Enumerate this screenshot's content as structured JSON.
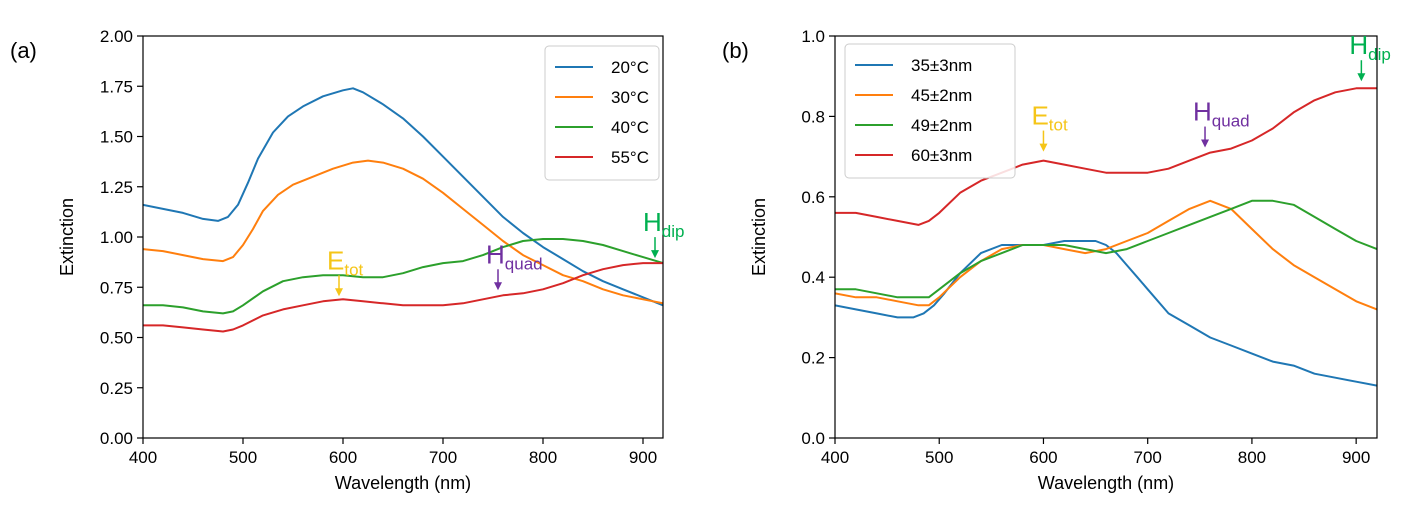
{
  "chart_data": [
    {
      "type": "line",
      "panel_label": "(a)",
      "xlabel": "Wavelength (nm)",
      "ylabel": "Extinction",
      "xlim": [
        400,
        920
      ],
      "ylim": [
        0.0,
        2.0
      ],
      "xticks": [
        400,
        500,
        600,
        700,
        800,
        900
      ],
      "xtick_labels": [
        "400",
        "500",
        "600",
        "700",
        "800",
        "900"
      ],
      "yticks": [
        0.0,
        0.25,
        0.5,
        0.75,
        1.0,
        1.25,
        1.5,
        1.75,
        2.0
      ],
      "ytick_labels": [
        "0.00",
        "0.25",
        "0.50",
        "0.75",
        "1.00",
        "1.25",
        "1.50",
        "1.75",
        "2.00"
      ],
      "legend_position": "top-right",
      "series": [
        {
          "name": "20°C",
          "color": "#1f77b4",
          "x": [
            400,
            420,
            440,
            460,
            475,
            485,
            495,
            505,
            515,
            530,
            545,
            560,
            580,
            600,
            610,
            620,
            640,
            660,
            680,
            700,
            720,
            740,
            760,
            780,
            800,
            820,
            840,
            860,
            880,
            900,
            920
          ],
          "y": [
            1.16,
            1.14,
            1.12,
            1.09,
            1.08,
            1.1,
            1.16,
            1.27,
            1.39,
            1.52,
            1.6,
            1.65,
            1.7,
            1.73,
            1.74,
            1.72,
            1.66,
            1.59,
            1.5,
            1.4,
            1.3,
            1.2,
            1.1,
            1.02,
            0.95,
            0.89,
            0.83,
            0.78,
            0.74,
            0.7,
            0.66
          ]
        },
        {
          "name": "30°C",
          "color": "#ff7f0e",
          "x": [
            400,
            420,
            440,
            460,
            480,
            490,
            500,
            510,
            520,
            535,
            550,
            570,
            590,
            610,
            625,
            640,
            660,
            680,
            700,
            720,
            740,
            760,
            780,
            800,
            820,
            840,
            860,
            880,
            900,
            920
          ],
          "y": [
            0.94,
            0.93,
            0.91,
            0.89,
            0.88,
            0.9,
            0.96,
            1.04,
            1.13,
            1.21,
            1.26,
            1.3,
            1.34,
            1.37,
            1.38,
            1.37,
            1.34,
            1.29,
            1.22,
            1.14,
            1.06,
            0.98,
            0.91,
            0.86,
            0.81,
            0.78,
            0.74,
            0.71,
            0.69,
            0.67
          ]
        },
        {
          "name": "40°C",
          "color": "#2ca02c",
          "x": [
            400,
            420,
            440,
            460,
            480,
            490,
            500,
            520,
            540,
            560,
            580,
            600,
            620,
            640,
            660,
            680,
            700,
            720,
            740,
            760,
            780,
            800,
            810,
            820,
            840,
            860,
            880,
            900,
            920
          ],
          "y": [
            0.66,
            0.66,
            0.65,
            0.63,
            0.62,
            0.63,
            0.66,
            0.73,
            0.78,
            0.8,
            0.81,
            0.81,
            0.8,
            0.8,
            0.82,
            0.85,
            0.87,
            0.88,
            0.91,
            0.95,
            0.98,
            0.99,
            0.99,
            0.99,
            0.98,
            0.96,
            0.93,
            0.9,
            0.87
          ]
        },
        {
          "name": "55°C",
          "color": "#d62728",
          "x": [
            400,
            420,
            440,
            460,
            480,
            490,
            500,
            520,
            540,
            560,
            580,
            600,
            620,
            640,
            660,
            680,
            700,
            720,
            740,
            760,
            780,
            800,
            820,
            840,
            860,
            880,
            900,
            910,
            920
          ],
          "y": [
            0.56,
            0.56,
            0.55,
            0.54,
            0.53,
            0.54,
            0.56,
            0.61,
            0.64,
            0.66,
            0.68,
            0.69,
            0.68,
            0.67,
            0.66,
            0.66,
            0.66,
            0.67,
            0.69,
            0.71,
            0.72,
            0.74,
            0.77,
            0.81,
            0.84,
            0.86,
            0.87,
            0.87,
            0.87
          ]
        }
      ],
      "annotations": [
        {
          "main": "E",
          "sub": "tot",
          "color": "#f5c518",
          "x": 596,
          "y": 0.7
        },
        {
          "main": "H",
          "sub": "quad",
          "color": "#7030a0",
          "x": 755,
          "y": 0.73
        },
        {
          "main": "H",
          "sub": "dip",
          "color": "#00b050",
          "x": 912,
          "y": 0.89
        }
      ]
    },
    {
      "type": "line",
      "panel_label": "(b)",
      "xlabel": "Wavelength (nm)",
      "ylabel": "Extinction",
      "xlim": [
        400,
        920
      ],
      "ylim": [
        0.0,
        1.0
      ],
      "xticks": [
        400,
        500,
        600,
        700,
        800,
        900
      ],
      "xtick_labels": [
        "400",
        "500",
        "600",
        "700",
        "800",
        "900"
      ],
      "yticks": [
        0.0,
        0.2,
        0.4,
        0.6,
        0.8,
        1.0
      ],
      "ytick_labels": [
        "0.0",
        "0.2",
        "0.4",
        "0.6",
        "0.8",
        "1.0"
      ],
      "legend_position": "top-left",
      "series": [
        {
          "name": "35±3nm",
          "color": "#1f77b4",
          "x": [
            400,
            420,
            440,
            460,
            475,
            485,
            495,
            505,
            520,
            540,
            560,
            580,
            600,
            620,
            640,
            650,
            660,
            670,
            680,
            690,
            700,
            720,
            740,
            760,
            780,
            800,
            820,
            840,
            860,
            880,
            900,
            920
          ],
          "y": [
            0.33,
            0.32,
            0.31,
            0.3,
            0.3,
            0.31,
            0.33,
            0.36,
            0.41,
            0.46,
            0.48,
            0.48,
            0.48,
            0.49,
            0.49,
            0.49,
            0.48,
            0.46,
            0.43,
            0.4,
            0.37,
            0.31,
            0.28,
            0.25,
            0.23,
            0.21,
            0.19,
            0.18,
            0.16,
            0.15,
            0.14,
            0.13
          ]
        },
        {
          "name": "45±2nm",
          "color": "#ff7f0e",
          "x": [
            400,
            420,
            440,
            460,
            480,
            490,
            500,
            520,
            540,
            560,
            580,
            600,
            620,
            640,
            660,
            680,
            700,
            720,
            740,
            760,
            780,
            800,
            820,
            840,
            860,
            880,
            900,
            920
          ],
          "y": [
            0.36,
            0.35,
            0.35,
            0.34,
            0.33,
            0.33,
            0.35,
            0.4,
            0.44,
            0.47,
            0.48,
            0.48,
            0.47,
            0.46,
            0.47,
            0.49,
            0.51,
            0.54,
            0.57,
            0.59,
            0.57,
            0.52,
            0.47,
            0.43,
            0.4,
            0.37,
            0.34,
            0.32
          ]
        },
        {
          "name": "49±2nm",
          "color": "#2ca02c",
          "x": [
            400,
            420,
            440,
            460,
            480,
            490,
            500,
            520,
            540,
            560,
            580,
            600,
            620,
            640,
            660,
            680,
            700,
            720,
            740,
            760,
            780,
            800,
            820,
            840,
            860,
            880,
            900,
            920
          ],
          "y": [
            0.37,
            0.37,
            0.36,
            0.35,
            0.35,
            0.35,
            0.37,
            0.41,
            0.44,
            0.46,
            0.48,
            0.48,
            0.48,
            0.47,
            0.46,
            0.47,
            0.49,
            0.51,
            0.53,
            0.55,
            0.57,
            0.59,
            0.59,
            0.58,
            0.55,
            0.52,
            0.49,
            0.47
          ]
        },
        {
          "name": "60±3nm",
          "color": "#d62728",
          "x": [
            400,
            420,
            440,
            460,
            480,
            490,
            500,
            520,
            540,
            560,
            580,
            600,
            620,
            640,
            660,
            680,
            700,
            720,
            740,
            760,
            780,
            800,
            820,
            840,
            860,
            880,
            900,
            920
          ],
          "y": [
            0.56,
            0.56,
            0.55,
            0.54,
            0.53,
            0.54,
            0.56,
            0.61,
            0.64,
            0.66,
            0.68,
            0.69,
            0.68,
            0.67,
            0.66,
            0.66,
            0.66,
            0.67,
            0.69,
            0.71,
            0.72,
            0.74,
            0.77,
            0.81,
            0.84,
            0.86,
            0.87,
            0.87
          ]
        }
      ],
      "annotations": [
        {
          "main": "E",
          "sub": "tot",
          "color": "#f5c518",
          "x": 600,
          "y": 0.71
        },
        {
          "main": "H",
          "sub": "quad",
          "color": "#7030a0",
          "x": 755,
          "y": 0.72
        },
        {
          "main": "H",
          "sub": "dip",
          "color": "#00b050",
          "x": 905,
          "y": 0.885
        }
      ]
    }
  ]
}
